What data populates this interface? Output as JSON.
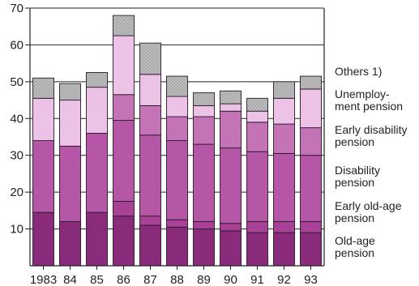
{
  "chart_data": {
    "type": "bar",
    "stacked": true,
    "title": "",
    "xlabel": "",
    "ylabel": "",
    "ylim": [
      0,
      70
    ],
    "y_ticks": [
      10,
      20,
      30,
      40,
      50,
      60,
      70
    ],
    "grid": "horizontal lines at 10-unit intervals",
    "legend_position": "right",
    "categories": [
      "1983",
      "84",
      "85",
      "86",
      "87",
      "88",
      "89",
      "90",
      "91",
      "92",
      "93"
    ],
    "series": [
      {
        "name": "Old-age pension",
        "color": "#8a2a7a",
        "values": [
          14.5,
          12,
          14.5,
          13.5,
          11,
          10.5,
          10,
          9.5,
          9,
          9,
          9
        ]
      },
      {
        "name": "Early old-age pension",
        "color": "#a84296",
        "values": [
          0,
          0,
          0,
          4,
          2.5,
          2,
          2,
          2,
          3,
          3,
          3
        ]
      },
      {
        "name": "Disability pension",
        "color": "#b557a6",
        "values": [
          19.5,
          20.5,
          21.5,
          22,
          22,
          21.5,
          21,
          20.5,
          19,
          18.5,
          18
        ]
      },
      {
        "name": "Early disability pension",
        "color": "#c473b6",
        "values": [
          0,
          0,
          0,
          7,
          8,
          6.5,
          7.5,
          10,
          8,
          8,
          7.5
        ]
      },
      {
        "name": "Unemployment pension",
        "color": "#ecc2e6",
        "values": [
          11.5,
          12.5,
          12.5,
          16,
          8.5,
          5.5,
          3,
          2,
          3,
          7,
          10.5
        ]
      },
      {
        "name": "Others 1)",
        "color": "#b3b3b3",
        "values": [
          5.5,
          4.5,
          4,
          5.5,
          8.5,
          5.5,
          3.5,
          3.5,
          3.5,
          4.5,
          3.5
        ]
      }
    ],
    "legend": [
      {
        "lines": [
          "Others 1)"
        ]
      },
      {
        "lines": [
          "Unemploy-",
          "ment pension"
        ]
      },
      {
        "lines": [
          "Early disability",
          "pension"
        ]
      },
      {
        "lines": [
          "Disability",
          "pension"
        ]
      },
      {
        "lines": [
          "Early old-age",
          "pension"
        ]
      },
      {
        "lines": [
          "Old-age",
          "pension"
        ]
      }
    ]
  }
}
